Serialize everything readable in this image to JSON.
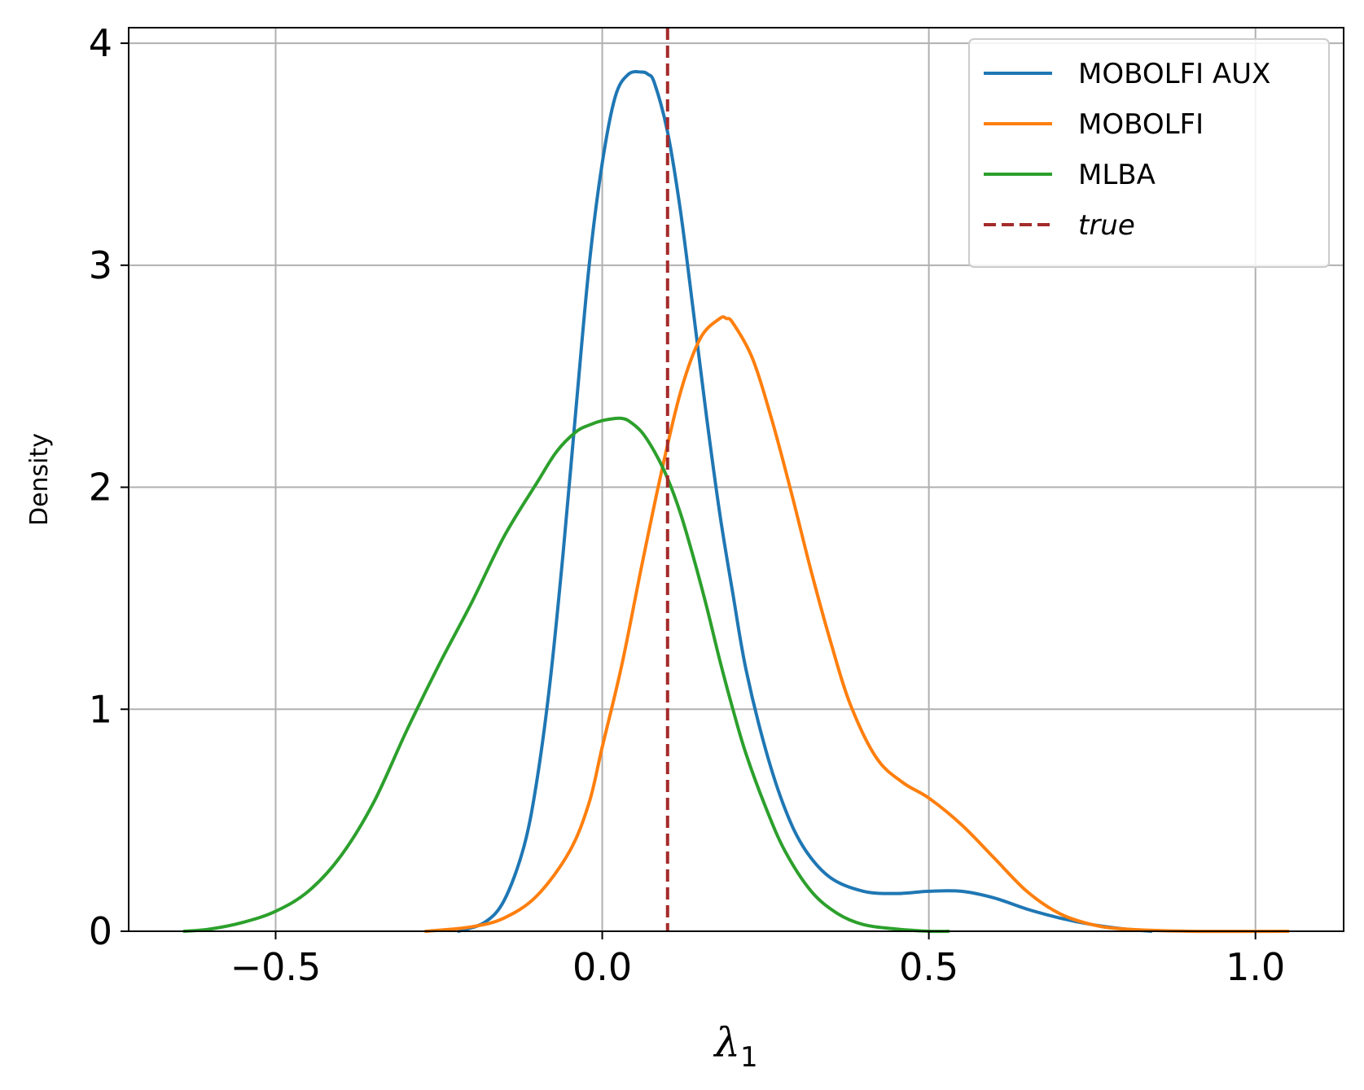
{
  "chart_data": {
    "type": "line",
    "title": "",
    "xlabel": "λ",
    "xlabel_sub": "1",
    "ylabel": "Density",
    "xlim": [
      -0.725,
      1.135
    ],
    "ylim": [
      0,
      4.07
    ],
    "grid": true,
    "legend_position": "top-right",
    "xticks": [
      -0.5,
      0.0,
      0.5,
      1.0
    ],
    "xtick_labels": [
      "−0.5",
      "0.0",
      "0.5",
      "1.0"
    ],
    "yticks": [
      0,
      1,
      2,
      3,
      4
    ],
    "ytick_labels": [
      "0",
      "1",
      "2",
      "3",
      "4"
    ],
    "series": [
      {
        "name": "MOBOLFI AUX",
        "color": "#1f77b4",
        "style": "solid",
        "x": [
          -0.22,
          -0.18,
          -0.15,
          -0.12,
          -0.1,
          -0.08,
          -0.06,
          -0.04,
          -0.02,
          0.0,
          0.02,
          0.04,
          0.06,
          0.07,
          0.08,
          0.1,
          0.12,
          0.14,
          0.16,
          0.18,
          0.2,
          0.22,
          0.25,
          0.28,
          0.31,
          0.35,
          0.4,
          0.45,
          0.5,
          0.55,
          0.6,
          0.65,
          0.7,
          0.75,
          0.8,
          0.84
        ],
        "y": [
          0.0,
          0.04,
          0.14,
          0.38,
          0.68,
          1.12,
          1.7,
          2.36,
          3.0,
          3.46,
          3.76,
          3.86,
          3.87,
          3.86,
          3.82,
          3.6,
          3.24,
          2.78,
          2.31,
          1.88,
          1.52,
          1.18,
          0.82,
          0.55,
          0.37,
          0.24,
          0.18,
          0.17,
          0.18,
          0.18,
          0.15,
          0.1,
          0.06,
          0.03,
          0.01,
          0.0
        ]
      },
      {
        "name": "MOBOLFI",
        "color": "#ff7f0e",
        "style": "solid",
        "x": [
          -0.27,
          -0.2,
          -0.15,
          -0.1,
          -0.05,
          -0.02,
          0.0,
          0.03,
          0.06,
          0.09,
          0.12,
          0.15,
          0.18,
          0.19,
          0.2,
          0.23,
          0.26,
          0.29,
          0.32,
          0.35,
          0.38,
          0.42,
          0.46,
          0.5,
          0.55,
          0.6,
          0.65,
          0.7,
          0.75,
          0.8,
          0.9,
          1.05
        ],
        "y": [
          0.0,
          0.02,
          0.06,
          0.16,
          0.36,
          0.58,
          0.83,
          1.2,
          1.64,
          2.06,
          2.43,
          2.67,
          2.76,
          2.76,
          2.74,
          2.58,
          2.3,
          1.97,
          1.62,
          1.3,
          1.02,
          0.78,
          0.67,
          0.6,
          0.48,
          0.33,
          0.18,
          0.08,
          0.03,
          0.01,
          0.0,
          0.0
        ]
      },
      {
        "name": "MLBA",
        "color": "#2ca02c",
        "style": "solid",
        "x": [
          -0.64,
          -0.6,
          -0.55,
          -0.5,
          -0.45,
          -0.4,
          -0.35,
          -0.3,
          -0.25,
          -0.2,
          -0.15,
          -0.1,
          -0.07,
          -0.04,
          -0.02,
          0.0,
          0.02,
          0.03,
          0.04,
          0.06,
          0.08,
          0.1,
          0.12,
          0.14,
          0.16,
          0.18,
          0.2,
          0.22,
          0.25,
          0.28,
          0.32,
          0.36,
          0.4,
          0.45,
          0.5,
          0.53
        ],
        "y": [
          0.0,
          0.01,
          0.04,
          0.09,
          0.18,
          0.34,
          0.58,
          0.9,
          1.2,
          1.48,
          1.78,
          2.02,
          2.16,
          2.25,
          2.28,
          2.3,
          2.31,
          2.31,
          2.3,
          2.25,
          2.16,
          2.04,
          1.88,
          1.68,
          1.46,
          1.22,
          1.0,
          0.8,
          0.56,
          0.36,
          0.18,
          0.08,
          0.03,
          0.01,
          0.0,
          0.0
        ]
      }
    ],
    "vlines": [
      {
        "name": "true",
        "x": 0.1,
        "color": "#a52a2a",
        "style": "dashed"
      }
    ],
    "legend": [
      {
        "label": "MOBOLFI AUX",
        "color": "#1f77b4",
        "style": "solid",
        "italic": false
      },
      {
        "label": "MOBOLFI",
        "color": "#ff7f0e",
        "style": "solid",
        "italic": false
      },
      {
        "label": "MLBA",
        "color": "#2ca02c",
        "style": "solid",
        "italic": false
      },
      {
        "label": "true",
        "color": "#a52a2a",
        "style": "dashed",
        "italic": true
      }
    ]
  }
}
